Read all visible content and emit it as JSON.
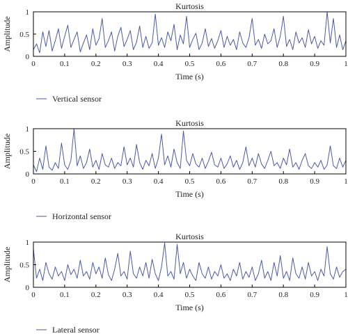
{
  "chart_data": [
    {
      "type": "line",
      "title": "Kurtosis",
      "xlabel": "Time (s)",
      "ylabel": "Amplitude",
      "xlim": [
        0,
        1
      ],
      "ylim": [
        0,
        1
      ],
      "xticks": [
        "0",
        "0.1",
        "0.2",
        "0.3",
        "0.4",
        "0.5",
        "0.6",
        "0.7",
        "0.8",
        "0.9",
        "1"
      ],
      "yticks": [
        "0",
        "0.5",
        "1"
      ],
      "grid": false,
      "legend_position": "below-left",
      "series": [
        {
          "name": "Vertical sensor",
          "color": "#4a5aa8",
          "x": [
            0,
            0.01,
            0.02,
            0.03,
            0.04,
            0.05,
            0.06,
            0.07,
            0.08,
            0.09,
            0.1,
            0.11,
            0.12,
            0.13,
            0.14,
            0.15,
            0.16,
            0.17,
            0.18,
            0.19,
            0.2,
            0.21,
            0.22,
            0.23,
            0.24,
            0.25,
            0.26,
            0.27,
            0.28,
            0.29,
            0.3,
            0.31,
            0.32,
            0.33,
            0.34,
            0.35,
            0.36,
            0.37,
            0.38,
            0.39,
            0.4,
            0.41,
            0.42,
            0.43,
            0.44,
            0.45,
            0.46,
            0.47,
            0.48,
            0.49,
            0.5,
            0.51,
            0.52,
            0.53,
            0.54,
            0.55,
            0.56,
            0.57,
            0.58,
            0.59,
            0.6,
            0.61,
            0.62,
            0.63,
            0.64,
            0.65,
            0.66,
            0.67,
            0.68,
            0.69,
            0.7,
            0.71,
            0.72,
            0.73,
            0.74,
            0.75,
            0.76,
            0.77,
            0.78,
            0.79,
            0.8,
            0.81,
            0.82,
            0.83,
            0.84,
            0.85,
            0.86,
            0.87,
            0.88,
            0.89,
            0.9,
            0.91,
            0.92,
            0.93,
            0.94,
            0.95,
            0.96,
            0.97,
            0.98,
            0.99,
            1.0
          ],
          "y": [
            0.15,
            0.28,
            0.08,
            0.55,
            0.22,
            0.58,
            0.12,
            0.35,
            0.62,
            0.18,
            0.45,
            0.7,
            0.2,
            0.38,
            0.55,
            0.1,
            0.3,
            0.48,
            0.15,
            0.62,
            0.25,
            0.4,
            0.85,
            0.2,
            0.35,
            0.55,
            0.12,
            0.45,
            0.65,
            0.22,
            0.38,
            0.58,
            0.15,
            0.32,
            0.68,
            0.2,
            0.45,
            0.18,
            0.3,
            0.95,
            0.25,
            0.42,
            0.2,
            0.55,
            0.35,
            0.72,
            0.15,
            0.48,
            0.28,
            0.9,
            0.2,
            0.38,
            0.52,
            0.15,
            0.3,
            0.62,
            0.22,
            0.4,
            0.18,
            0.35,
            0.58,
            0.2,
            0.45,
            0.25,
            0.38,
            0.15,
            0.55,
            0.3,
            0.2,
            0.42,
            0.85,
            0.25,
            0.38,
            0.18,
            0.5,
            0.28,
            0.35,
            0.62,
            0.2,
            0.45,
            0.9,
            0.22,
            0.38,
            0.15,
            0.55,
            0.3,
            0.42,
            0.2,
            0.6,
            0.28,
            0.45,
            0.18,
            0.35,
            0.25,
            1.0,
            0.3,
            0.85,
            0.2,
            0.48,
            0.15,
            0.35
          ]
        }
      ]
    },
    {
      "type": "line",
      "title": "Kurtosis",
      "xlabel": "Time (s)",
      "ylabel": "Amplitude",
      "xlim": [
        0,
        1
      ],
      "ylim": [
        0,
        1
      ],
      "xticks": [
        "0",
        "0.1",
        "0.2",
        "0.3",
        "0.4",
        "0.5",
        "0.6",
        "0.7",
        "0.8",
        "0.9",
        "1"
      ],
      "yticks": [
        "0",
        "0.5",
        "1"
      ],
      "grid": false,
      "legend_position": "below-left",
      "series": [
        {
          "name": "Horizontal sensor",
          "color": "#4a5aa8",
          "x": [
            0,
            0.01,
            0.02,
            0.03,
            0.04,
            0.05,
            0.06,
            0.07,
            0.08,
            0.09,
            0.1,
            0.11,
            0.12,
            0.13,
            0.14,
            0.15,
            0.16,
            0.17,
            0.18,
            0.19,
            0.2,
            0.21,
            0.22,
            0.23,
            0.24,
            0.25,
            0.26,
            0.27,
            0.28,
            0.29,
            0.3,
            0.31,
            0.32,
            0.33,
            0.34,
            0.35,
            0.36,
            0.37,
            0.38,
            0.39,
            0.4,
            0.41,
            0.42,
            0.43,
            0.44,
            0.45,
            0.46,
            0.47,
            0.48,
            0.49,
            0.5,
            0.51,
            0.52,
            0.53,
            0.54,
            0.55,
            0.56,
            0.57,
            0.58,
            0.59,
            0.6,
            0.61,
            0.62,
            0.63,
            0.64,
            0.65,
            0.66,
            0.67,
            0.68,
            0.69,
            0.7,
            0.71,
            0.72,
            0.73,
            0.74,
            0.75,
            0.76,
            0.77,
            0.78,
            0.79,
            0.8,
            0.81,
            0.82,
            0.83,
            0.84,
            0.85,
            0.86,
            0.87,
            0.88,
            0.89,
            0.9,
            0.91,
            0.92,
            0.93,
            0.94,
            0.95,
            0.96,
            0.97,
            0.98,
            0.99,
            1.0
          ],
          "y": [
            0.2,
            0.05,
            0.35,
            0.1,
            0.62,
            0.15,
            0.08,
            0.25,
            0.12,
            0.68,
            0.2,
            0.1,
            0.3,
            1.0,
            0.18,
            0.4,
            0.12,
            0.25,
            0.55,
            0.15,
            0.3,
            0.1,
            0.45,
            0.2,
            0.15,
            0.35,
            0.12,
            0.25,
            0.18,
            0.6,
            0.2,
            0.35,
            0.15,
            0.65,
            0.25,
            0.1,
            0.3,
            0.18,
            0.45,
            0.12,
            0.35,
            0.88,
            0.2,
            0.4,
            0.15,
            0.55,
            0.25,
            0.12,
            0.95,
            0.3,
            0.18,
            0.45,
            0.22,
            0.15,
            0.35,
            0.12,
            0.28,
            0.48,
            0.2,
            0.15,
            0.35,
            0.12,
            0.22,
            0.4,
            0.15,
            0.3,
            0.1,
            0.25,
            0.6,
            0.18,
            0.35,
            0.15,
            0.45,
            0.22,
            0.12,
            0.3,
            0.5,
            0.18,
            0.25,
            0.12,
            0.35,
            0.2,
            0.55,
            0.15,
            0.25,
            0.1,
            0.3,
            0.45,
            0.18,
            0.12,
            0.25,
            0.15,
            0.3,
            0.1,
            0.2,
            0.62,
            0.18,
            0.12,
            0.35,
            0.15,
            0.3
          ]
        }
      ]
    },
    {
      "type": "line",
      "title": "Kurtosis",
      "xlabel": "Time (s)",
      "ylabel": "Amplitude",
      "xlim": [
        0,
        1
      ],
      "ylim": [
        0,
        1
      ],
      "xticks": [
        "0",
        "0.1",
        "0.2",
        "0.3",
        "0.4",
        "0.5",
        "0.6",
        "0.7",
        "0.8",
        "0.9",
        "1"
      ],
      "yticks": [
        "0",
        "0.5",
        "1"
      ],
      "grid": false,
      "legend_position": "below-left",
      "series": [
        {
          "name": "Lateral sensor",
          "color": "#4a5aa8",
          "x": [
            0,
            0.01,
            0.02,
            0.03,
            0.04,
            0.05,
            0.06,
            0.07,
            0.08,
            0.09,
            0.1,
            0.11,
            0.12,
            0.13,
            0.14,
            0.15,
            0.16,
            0.17,
            0.18,
            0.19,
            0.2,
            0.21,
            0.22,
            0.23,
            0.24,
            0.25,
            0.26,
            0.27,
            0.28,
            0.29,
            0.3,
            0.31,
            0.32,
            0.33,
            0.34,
            0.35,
            0.36,
            0.37,
            0.38,
            0.39,
            0.4,
            0.41,
            0.42,
            0.43,
            0.44,
            0.45,
            0.46,
            0.47,
            0.48,
            0.49,
            0.5,
            0.51,
            0.52,
            0.53,
            0.54,
            0.55,
            0.56,
            0.57,
            0.58,
            0.59,
            0.6,
            0.61,
            0.62,
            0.63,
            0.64,
            0.65,
            0.66,
            0.67,
            0.68,
            0.69,
            0.7,
            0.71,
            0.72,
            0.73,
            0.74,
            0.75,
            0.76,
            0.77,
            0.78,
            0.79,
            0.8,
            0.81,
            0.82,
            0.83,
            0.84,
            0.85,
            0.86,
            0.87,
            0.88,
            0.89,
            0.9,
            0.91,
            0.92,
            0.93,
            0.94,
            0.95,
            0.96,
            0.97,
            0.98,
            0.99,
            1.0
          ],
          "y": [
            0.85,
            0.2,
            0.4,
            0.15,
            0.55,
            0.3,
            0.18,
            0.45,
            0.25,
            0.35,
            0.15,
            0.5,
            0.28,
            0.4,
            0.2,
            0.6,
            0.25,
            0.35,
            0.18,
            0.55,
            0.3,
            0.45,
            0.2,
            0.65,
            0.28,
            0.15,
            0.4,
            0.75,
            0.25,
            0.35,
            0.18,
            0.8,
            0.3,
            0.2,
            0.45,
            0.25,
            0.55,
            0.2,
            0.62,
            0.3,
            0.15,
            0.45,
            0.98,
            0.25,
            0.35,
            0.18,
            0.95,
            0.3,
            0.55,
            0.2,
            0.4,
            0.25,
            0.15,
            0.55,
            0.3,
            0.2,
            0.45,
            0.18,
            0.35,
            0.25,
            0.5,
            0.2,
            0.3,
            0.15,
            0.4,
            0.25,
            0.55,
            0.18,
            0.35,
            0.22,
            0.45,
            0.15,
            0.3,
            0.6,
            0.2,
            0.35,
            0.15,
            0.55,
            0.25,
            0.7,
            0.2,
            0.35,
            0.15,
            0.65,
            0.3,
            0.2,
            0.45,
            0.18,
            0.55,
            0.25,
            0.35,
            0.15,
            0.4,
            0.25,
            0.9,
            0.3,
            0.18,
            0.45,
            0.22,
            0.35,
            0.4
          ]
        }
      ]
    }
  ]
}
